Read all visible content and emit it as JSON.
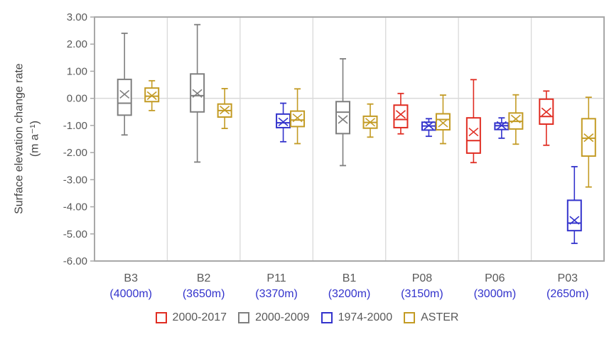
{
  "chart_data": {
    "type": "box",
    "title": "",
    "ylabel_line1": "Surface elevation change rate",
    "ylabel_line2": "(m a⁻¹)",
    "ylim": [
      -6,
      3
    ],
    "ytick_labels": [
      "3.00",
      "2.00",
      "1.00",
      "0.00",
      "-1.00",
      "-2.00",
      "-3.00",
      "-4.00",
      "-5.00",
      "-6.00"
    ],
    "grid": {
      "zero_line": true,
      "category_separators": true,
      "legend_position": "bottom-center"
    },
    "colors": {
      "axis_border": "#a8a8a8",
      "gridline": "#d9d9d9",
      "tick_text": "#595959",
      "category_text": "#595959",
      "elevation_text": "#3333cc",
      "ylabel_text": "#444444"
    },
    "categories": [
      {
        "name": "B3",
        "elevation": "(4000m)"
      },
      {
        "name": "B2",
        "elevation": "(3650m)"
      },
      {
        "name": "P11",
        "elevation": "(3370m)"
      },
      {
        "name": "B1",
        "elevation": "(3200m)"
      },
      {
        "name": "P08",
        "elevation": "(3150m)"
      },
      {
        "name": "P06",
        "elevation": "(3000m)"
      },
      {
        "name": "P03",
        "elevation": "(2650m)"
      }
    ],
    "series": [
      {
        "id": "2000-2017",
        "label": "2000-2017",
        "color": "#e02d22",
        "slot_offset": -30
      },
      {
        "id": "2000-2009",
        "label": "2000-2009",
        "color": "#7f7f7f",
        "slot_offset": -9
      },
      {
        "id": "1974-2000",
        "label": "1974-2000",
        "color": "#3333cc",
        "slot_offset": 9.5
      },
      {
        "id": "ASTER",
        "label": "ASTER",
        "color": "#c39b24",
        "slot_offset": 29.5
      }
    ],
    "boxes": [
      {
        "category": "B3",
        "series": "2000-2009",
        "whisker_lo": -1.35,
        "q1": -0.62,
        "median": -0.18,
        "mean": 0.15,
        "q3": 0.7,
        "whisker_hi": 2.4
      },
      {
        "category": "B3",
        "series": "ASTER",
        "whisker_lo": -0.45,
        "q1": -0.12,
        "median": 0.08,
        "mean": 0.1,
        "q3": 0.38,
        "whisker_hi": 0.65
      },
      {
        "category": "B2",
        "series": "2000-2009",
        "whisker_lo": -2.35,
        "q1": -0.5,
        "median": 0.1,
        "mean": 0.18,
        "q3": 0.9,
        "whisker_hi": 2.72
      },
      {
        "category": "B2",
        "series": "ASTER",
        "whisker_lo": -1.11,
        "q1": -0.69,
        "median": -0.45,
        "mean": -0.43,
        "q3": -0.21,
        "whisker_hi": 0.36
      },
      {
        "category": "P11",
        "series": "1974-2000",
        "whisker_lo": -1.6,
        "q1": -1.08,
        "median": -0.9,
        "mean": -0.87,
        "q3": -0.58,
        "whisker_hi": -0.18
      },
      {
        "category": "P11",
        "series": "ASTER",
        "whisker_lo": -1.67,
        "q1": -1.04,
        "median": -0.8,
        "mean": -0.72,
        "q3": -0.47,
        "whisker_hi": 0.35
      },
      {
        "category": "B1",
        "series": "2000-2009",
        "whisker_lo": -2.48,
        "q1": -1.3,
        "median": -0.51,
        "mean": -0.78,
        "q3": -0.12,
        "whisker_hi": 1.46
      },
      {
        "category": "B1",
        "series": "ASTER",
        "whisker_lo": -1.43,
        "q1": -1.1,
        "median": -0.89,
        "mean": -0.88,
        "q3": -0.66,
        "whisker_hi": -0.21
      },
      {
        "category": "P08",
        "series": "2000-2017",
        "whisker_lo": -1.31,
        "q1": -1.08,
        "median": -0.78,
        "mean": -0.59,
        "q3": -0.25,
        "whisker_hi": 0.18
      },
      {
        "category": "P08",
        "series": "1974-2000",
        "whisker_lo": -1.4,
        "q1": -1.17,
        "median": -1.02,
        "mean": -1.0,
        "q3": -0.88,
        "whisker_hi": -0.75
      },
      {
        "category": "P08",
        "series": "ASTER",
        "whisker_lo": -1.67,
        "q1": -1.16,
        "median": -0.78,
        "mean": -0.91,
        "q3": -0.57,
        "whisker_hi": 0.12
      },
      {
        "category": "P06",
        "series": "2000-2017",
        "whisker_lo": -2.37,
        "q1": -2.02,
        "median": -1.56,
        "mean": -1.24,
        "q3": -0.72,
        "whisker_hi": 0.69
      },
      {
        "category": "P06",
        "series": "1974-2000",
        "whisker_lo": -1.47,
        "q1": -1.15,
        "median": -1.01,
        "mean": -1.0,
        "q3": -0.91,
        "whisker_hi": -0.72
      },
      {
        "category": "P06",
        "series": "ASTER",
        "whisker_lo": -1.69,
        "q1": -1.13,
        "median": -0.85,
        "mean": -0.76,
        "q3": -0.54,
        "whisker_hi": 0.13
      },
      {
        "category": "P03",
        "series": "2000-2017",
        "whisker_lo": -1.73,
        "q1": -0.95,
        "median": -0.67,
        "mean": -0.5,
        "q3": -0.03,
        "whisker_hi": 0.27
      },
      {
        "category": "P03",
        "series": "1974-2000",
        "whisker_lo": -5.35,
        "q1": -4.88,
        "median": -4.6,
        "mean": -4.5,
        "q3": -3.76,
        "whisker_hi": -2.52
      },
      {
        "category": "P03",
        "series": "ASTER",
        "whisker_lo": -3.27,
        "q1": -2.13,
        "median": -1.47,
        "mean": -1.45,
        "q3": -0.75,
        "whisker_hi": 0.04
      }
    ],
    "legend_items": [
      "2000-2017",
      "2000-2009",
      "1974-2000",
      "ASTER"
    ]
  }
}
